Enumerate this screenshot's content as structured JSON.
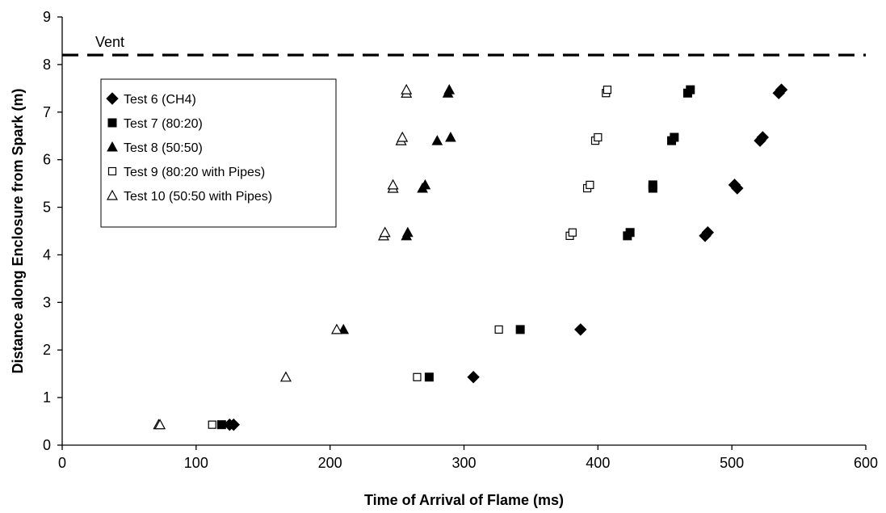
{
  "chart_data": {
    "type": "scatter",
    "title": "",
    "xlabel": "Time of Arrival of Flame (ms)",
    "ylabel": "Distance along Enclosure from Spark (m)",
    "xlim": [
      0,
      600
    ],
    "ylim": [
      0,
      9
    ],
    "xticks": [
      0,
      100,
      200,
      300,
      400,
      500,
      600
    ],
    "yticks": [
      0,
      1,
      2,
      3,
      4,
      5,
      6,
      7,
      8,
      9
    ],
    "grid": false,
    "legend_position": "top-left",
    "reference_line": {
      "label": "Vent",
      "y": 8.2,
      "style": "dashed"
    },
    "series": [
      {
        "name": "Test 6 (CH4)",
        "marker": "filled-diamond",
        "points": [
          [
            128,
            0.43
          ],
          [
            125,
            0.43
          ],
          [
            307,
            1.43
          ],
          [
            387,
            2.43
          ],
          [
            480,
            4.4
          ],
          [
            482,
            4.47
          ],
          [
            502,
            5.47
          ],
          [
            504,
            5.4
          ],
          [
            521,
            6.4
          ],
          [
            523,
            6.47
          ],
          [
            535,
            7.4
          ],
          [
            537,
            7.47
          ]
        ]
      },
      {
        "name": "Test 7 (80:20)",
        "marker": "filled-square",
        "points": [
          [
            119,
            0.43
          ],
          [
            274,
            1.43
          ],
          [
            342,
            2.43
          ],
          [
            422,
            4.4
          ],
          [
            424,
            4.47
          ],
          [
            441,
            5.4
          ],
          [
            441,
            5.47
          ],
          [
            455,
            6.4
          ],
          [
            457,
            6.47
          ],
          [
            467,
            7.4
          ],
          [
            469,
            7.47
          ]
        ]
      },
      {
        "name": "Test 8 (50:50)",
        "marker": "filled-triangle",
        "points": [
          [
            210,
            2.43
          ],
          [
            257,
            4.4
          ],
          [
            258,
            4.47
          ],
          [
            269,
            5.4
          ],
          [
            271,
            5.47
          ],
          [
            280,
            6.4
          ],
          [
            290,
            6.47
          ],
          [
            288,
            7.4
          ],
          [
            289,
            7.47
          ]
        ]
      },
      {
        "name": "Test 9 (80:20 with Pipes)",
        "marker": "open-square",
        "points": [
          [
            112,
            0.43
          ],
          [
            265,
            1.43
          ],
          [
            326,
            2.43
          ],
          [
            379,
            4.4
          ],
          [
            381,
            4.47
          ],
          [
            392,
            5.4
          ],
          [
            394,
            5.47
          ],
          [
            398,
            6.4
          ],
          [
            400,
            6.47
          ],
          [
            406,
            7.4
          ],
          [
            407,
            7.47
          ]
        ]
      },
      {
        "name": "Test 10 (50:50 with Pipes)",
        "marker": "open-triangle",
        "points": [
          [
            72,
            0.43
          ],
          [
            73,
            0.43
          ],
          [
            167,
            1.43
          ],
          [
            205,
            2.43
          ],
          [
            240,
            4.4
          ],
          [
            241,
            4.47
          ],
          [
            247,
            5.4
          ],
          [
            247,
            5.47
          ],
          [
            253,
            6.4
          ],
          [
            254,
            6.47
          ],
          [
            257,
            7.4
          ],
          [
            257,
            7.47
          ]
        ]
      }
    ]
  }
}
